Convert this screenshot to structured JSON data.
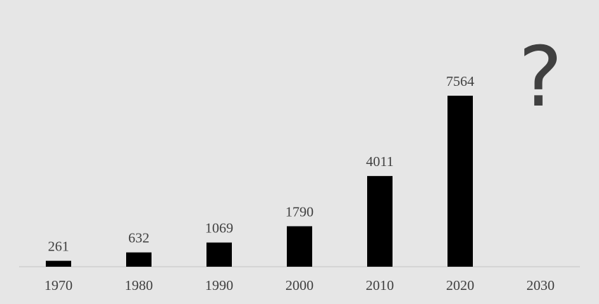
{
  "chart_data": {
    "type": "bar",
    "categories": [
      "1970",
      "1980",
      "1990",
      "2000",
      "2010",
      "2020",
      "2030"
    ],
    "values": [
      261,
      632,
      1069,
      1790,
      4011,
      7564,
      null
    ],
    "color": "#000000",
    "annotation": "?"
  }
}
